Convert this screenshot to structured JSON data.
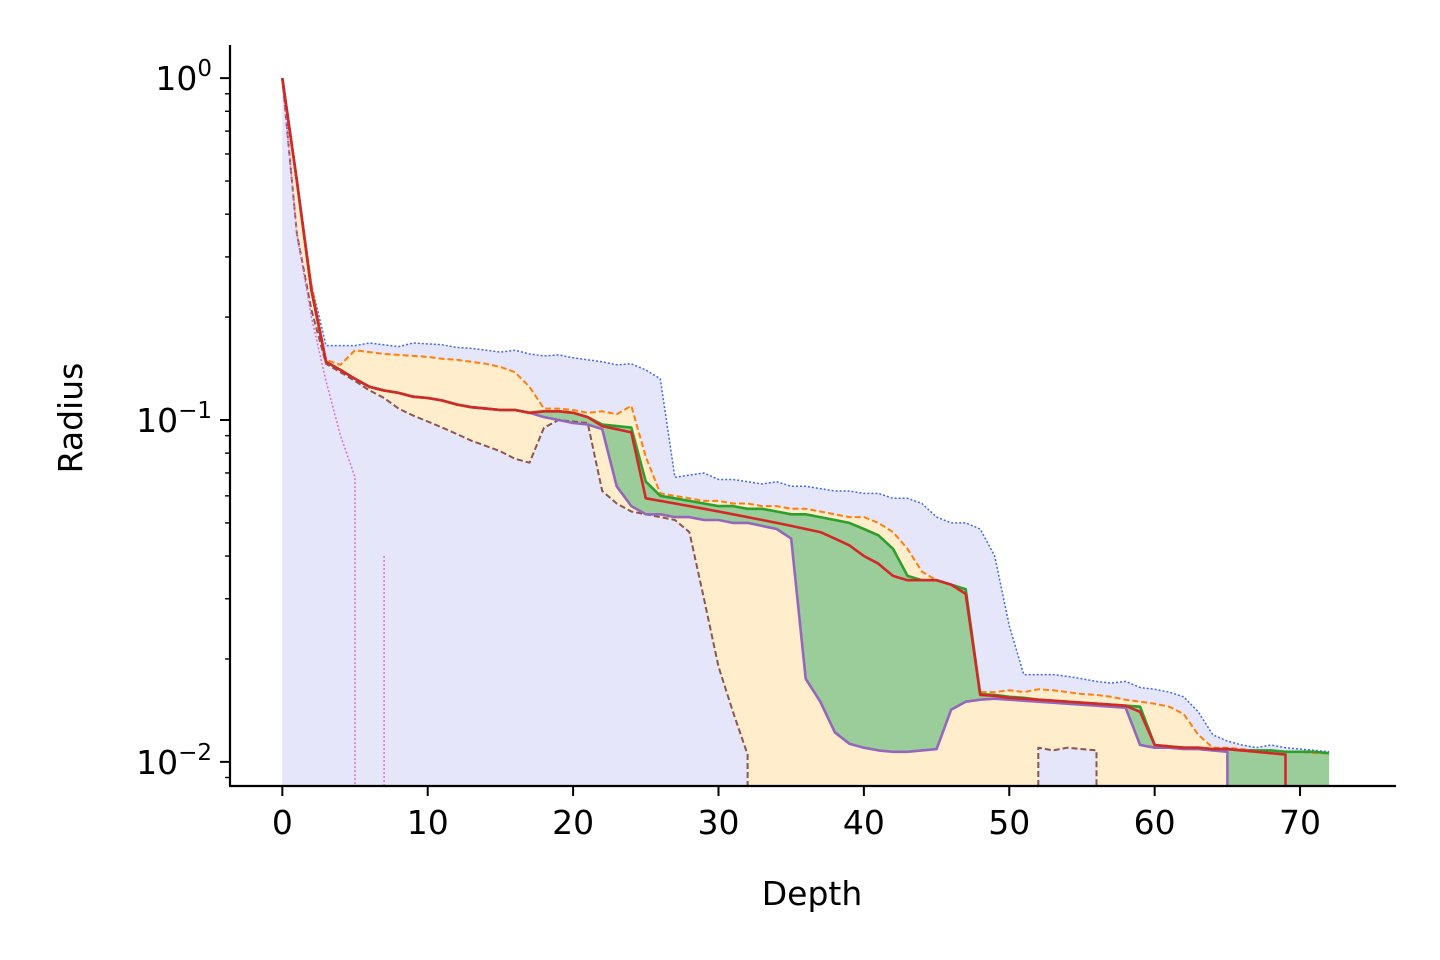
{
  "chart_data": {
    "type": "area",
    "title": "",
    "xlabel": "Depth",
    "ylabel": "Radius",
    "xlim": [
      -3.6,
      76.6
    ],
    "ylim": [
      0.0085,
      1.25
    ],
    "yscale": "log",
    "grid": false,
    "legend": "none",
    "xticks": [
      0,
      10,
      20,
      30,
      40,
      50,
      60,
      70
    ],
    "xtick_labels": [
      "0",
      "10",
      "20",
      "30",
      "40",
      "50",
      "60",
      "70"
    ],
    "yticks": [
      1,
      0.1,
      0.01
    ],
    "ytick_labels": [
      {
        "base": "10",
        "exp": "0"
      },
      {
        "base": "10",
        "exp": "−1"
      },
      {
        "base": "10",
        "exp": "−2"
      }
    ],
    "colors": {
      "blue": "#4169e1",
      "blue_fill": "#e6e6fa",
      "orange": "#ff7f0e",
      "orange_fill": "#ffedcc",
      "green": "#2ca02c",
      "green_fill": "#9acd99",
      "red": "#d62728",
      "purple": "#9467bd",
      "brown": "#8c564b",
      "violet": "#da70d6"
    },
    "series": [
      {
        "role": "upper-bound",
        "color": "blue",
        "style": "dotted",
        "x": [
          0,
          1,
          2,
          3,
          4,
          5,
          6,
          7,
          8,
          9,
          10,
          11,
          12,
          13,
          14,
          15,
          16,
          17,
          18,
          19,
          20,
          21,
          22,
          23,
          24,
          25,
          26,
          27,
          28,
          29,
          30,
          31,
          32,
          33,
          34,
          35,
          36,
          37,
          38,
          39,
          40,
          41,
          42,
          43,
          44,
          45,
          46,
          47,
          48,
          49,
          50,
          51,
          52,
          53,
          54,
          55,
          56,
          57,
          58,
          59,
          60,
          61,
          62,
          63,
          64,
          65,
          66,
          67,
          68,
          69,
          70,
          71,
          72
        ],
        "y": [
          1.0,
          0.5,
          0.25,
          0.165,
          0.165,
          0.165,
          0.168,
          0.166,
          0.164,
          0.168,
          0.167,
          0.166,
          0.163,
          0.162,
          0.16,
          0.158,
          0.16,
          0.156,
          0.154,
          0.155,
          0.152,
          0.15,
          0.148,
          0.145,
          0.146,
          0.14,
          0.132,
          0.068,
          0.069,
          0.07,
          0.067,
          0.067,
          0.066,
          0.065,
          0.066,
          0.064,
          0.064,
          0.063,
          0.062,
          0.062,
          0.061,
          0.061,
          0.059,
          0.059,
          0.057,
          0.052,
          0.05,
          0.05,
          0.048,
          0.04,
          0.025,
          0.018,
          0.018,
          0.018,
          0.0178,
          0.0175,
          0.0172,
          0.017,
          0.0172,
          0.0165,
          0.0163,
          0.016,
          0.0155,
          0.014,
          0.012,
          0.0115,
          0.0112,
          0.011,
          0.0112,
          0.011,
          0.0109,
          0.0108,
          0.0107
        ]
      },
      {
        "role": "upper-quartile",
        "color": "orange",
        "style": "dashed",
        "x": [
          0,
          1,
          2,
          3,
          4,
          5,
          6,
          7,
          8,
          9,
          10,
          11,
          12,
          13,
          14,
          15,
          16,
          17,
          18,
          19,
          20,
          21,
          22,
          23,
          24,
          25,
          26,
          27,
          28,
          29,
          30,
          31,
          32,
          33,
          34,
          35,
          36,
          37,
          38,
          39,
          40,
          41,
          42,
          43,
          44,
          45,
          46,
          47,
          48,
          49,
          50,
          51,
          52,
          53,
          54,
          55,
          56,
          57,
          58,
          59,
          60,
          61,
          62,
          63,
          64,
          65,
          66,
          67,
          68,
          69,
          70,
          71,
          72
        ],
        "y": [
          1.0,
          0.5,
          0.25,
          0.15,
          0.145,
          0.16,
          0.158,
          0.156,
          0.155,
          0.154,
          0.153,
          0.151,
          0.15,
          0.148,
          0.146,
          0.143,
          0.138,
          0.125,
          0.108,
          0.108,
          0.107,
          0.105,
          0.106,
          0.104,
          0.11,
          0.078,
          0.061,
          0.06,
          0.059,
          0.058,
          0.058,
          0.057,
          0.057,
          0.056,
          0.056,
          0.055,
          0.055,
          0.054,
          0.053,
          0.052,
          0.052,
          0.05,
          0.047,
          0.042,
          0.036,
          0.034,
          0.033,
          0.032,
          0.016,
          0.016,
          0.0162,
          0.016,
          0.0163,
          0.0162,
          0.016,
          0.0158,
          0.0157,
          0.0155,
          0.0152,
          0.015,
          0.0148,
          0.0145,
          0.0138,
          0.012,
          0.011,
          0.011,
          0.0109,
          0.0108,
          0.0108,
          0.0107,
          0.0107,
          0.0106,
          0.0106
        ]
      },
      {
        "role": "mean",
        "color": "green",
        "style": "solid",
        "x": [
          0,
          1,
          2,
          3,
          4,
          5,
          6,
          7,
          8,
          9,
          10,
          11,
          12,
          13,
          14,
          15,
          16,
          17,
          18,
          19,
          20,
          21,
          22,
          23,
          24,
          25,
          26,
          27,
          28,
          29,
          30,
          31,
          32,
          33,
          34,
          35,
          36,
          37,
          38,
          39,
          40,
          41,
          42,
          43,
          44,
          45,
          46,
          47,
          48,
          49,
          50,
          51,
          52,
          53,
          54,
          55,
          56,
          57,
          58,
          59,
          60,
          61,
          62,
          63,
          64,
          65,
          66,
          67,
          68,
          69,
          70,
          71,
          72
        ],
        "y": [
          1.0,
          0.5,
          0.24,
          0.148,
          0.14,
          0.132,
          0.125,
          0.122,
          0.12,
          0.117,
          0.116,
          0.114,
          0.111,
          0.109,
          0.108,
          0.107,
          0.107,
          0.105,
          0.106,
          0.106,
          0.105,
          0.102,
          0.097,
          0.096,
          0.095,
          0.066,
          0.06,
          0.059,
          0.058,
          0.057,
          0.056,
          0.056,
          0.055,
          0.055,
          0.054,
          0.053,
          0.053,
          0.052,
          0.051,
          0.05,
          0.048,
          0.046,
          0.042,
          0.035,
          0.034,
          0.034,
          0.033,
          0.032,
          0.0158,
          0.0157,
          0.0155,
          0.0154,
          0.0152,
          0.0151,
          0.015,
          0.0149,
          0.0148,
          0.0147,
          0.0146,
          0.0145,
          0.0112,
          0.0111,
          0.011,
          0.011,
          0.0109,
          0.0109,
          0.0108,
          0.0108,
          0.0108,
          0.0107,
          0.0107,
          0.0107,
          0.0106
        ]
      },
      {
        "role": "median",
        "color": "red",
        "style": "solid",
        "x": [
          0,
          1,
          2,
          3,
          4,
          5,
          6,
          7,
          8,
          9,
          10,
          11,
          12,
          13,
          14,
          15,
          16,
          17,
          18,
          19,
          20,
          21,
          22,
          23,
          24,
          25,
          26,
          27,
          28,
          29,
          30,
          31,
          32,
          33,
          34,
          35,
          36,
          37,
          38,
          39,
          40,
          41,
          42,
          43,
          44,
          45,
          46,
          47,
          48,
          49,
          50,
          51,
          52,
          53,
          54,
          55,
          56,
          57,
          58,
          59,
          60,
          61,
          62,
          63,
          64,
          65,
          66,
          67,
          68,
          69
        ],
        "y": [
          1.0,
          0.5,
          0.24,
          0.148,
          0.14,
          0.132,
          0.125,
          0.122,
          0.12,
          0.117,
          0.116,
          0.114,
          0.111,
          0.109,
          0.108,
          0.107,
          0.107,
          0.105,
          0.106,
          0.106,
          0.105,
          0.102,
          0.096,
          0.094,
          0.092,
          0.059,
          0.058,
          0.057,
          0.056,
          0.055,
          0.054,
          0.053,
          0.052,
          0.051,
          0.05,
          0.049,
          0.048,
          0.047,
          0.045,
          0.043,
          0.04,
          0.038,
          0.035,
          0.034,
          0.034,
          0.034,
          0.033,
          0.031,
          0.0157,
          0.0156,
          0.0154,
          0.0153,
          0.0152,
          0.0151,
          0.015,
          0.0149,
          0.0148,
          0.0147,
          0.0146,
          0.014,
          0.0112,
          0.0111,
          0.011,
          0.011,
          0.0109,
          0.0109,
          0.0108,
          0.0107,
          0.0106,
          0.0105
        ]
      },
      {
        "role": "lower-quartile",
        "color": "purple",
        "style": "solid",
        "x": [
          0,
          1,
          2,
          3,
          4,
          5,
          6,
          7,
          8,
          9,
          10,
          11,
          12,
          13,
          14,
          15,
          16,
          17,
          18,
          19,
          20,
          21,
          22,
          23,
          24,
          25,
          26,
          27,
          28,
          29,
          30,
          31,
          32,
          33,
          34,
          35,
          36,
          37,
          38,
          39,
          40,
          41,
          42,
          43,
          44,
          45,
          46,
          47,
          48,
          49,
          50,
          51,
          52,
          53,
          54,
          55,
          56,
          57,
          58,
          59,
          60,
          61,
          62,
          63,
          64,
          65
        ],
        "y": [
          1.0,
          0.5,
          0.24,
          0.148,
          0.14,
          0.132,
          0.125,
          0.122,
          0.12,
          0.117,
          0.116,
          0.114,
          0.111,
          0.109,
          0.108,
          0.107,
          0.107,
          0.105,
          0.102,
          0.1,
          0.098,
          0.097,
          0.094,
          0.064,
          0.056,
          0.053,
          0.053,
          0.052,
          0.052,
          0.051,
          0.051,
          0.05,
          0.05,
          0.049,
          0.048,
          0.045,
          0.0175,
          0.015,
          0.0122,
          0.0113,
          0.011,
          0.0108,
          0.0107,
          0.0107,
          0.0108,
          0.0109,
          0.0142,
          0.015,
          0.0152,
          0.0153,
          0.0152,
          0.0151,
          0.015,
          0.0149,
          0.0148,
          0.0147,
          0.0146,
          0.0145,
          0.0144,
          0.0112,
          0.011,
          0.011,
          0.0109,
          0.0109,
          0.0108,
          0.0107
        ]
      },
      {
        "role": "lower-bound",
        "color": "brown",
        "style": "dashed",
        "x": [
          0,
          1,
          2,
          3,
          4,
          5,
          6,
          7,
          8,
          9,
          10,
          11,
          12,
          13,
          14,
          15,
          16,
          17,
          18,
          19,
          20,
          21,
          22,
          23,
          24,
          25,
          26,
          27,
          28,
          29,
          30,
          31,
          32
        ],
        "y": [
          1.0,
          0.35,
          0.21,
          0.146,
          0.138,
          0.13,
          0.122,
          0.116,
          0.108,
          0.103,
          0.099,
          0.095,
          0.091,
          0.087,
          0.084,
          0.081,
          0.077,
          0.075,
          0.095,
          0.1,
          0.099,
          0.098,
          0.062,
          0.057,
          0.054,
          0.053,
          0.052,
          0.051,
          0.047,
          0.03,
          0.019,
          0.014,
          0.0105
        ]
      },
      {
        "role": "lower-bound-segment",
        "color": "brown",
        "style": "dashed",
        "x": [
          52,
          53,
          54,
          55,
          56
        ],
        "y": [
          0.011,
          0.0108,
          0.011,
          0.0109,
          0.0108
        ]
      },
      {
        "role": "minimum",
        "color": "violet",
        "style": "dotted",
        "x": [
          0,
          1,
          2,
          3,
          4,
          5
        ],
        "y": [
          1.0,
          0.35,
          0.2,
          0.13,
          0.09,
          0.068
        ]
      },
      {
        "role": "minimum-segment",
        "color": "violet",
        "style": "dotted",
        "x": [
          7,
          7
        ],
        "y": [
          0.04,
          0.008
        ]
      }
    ]
  }
}
